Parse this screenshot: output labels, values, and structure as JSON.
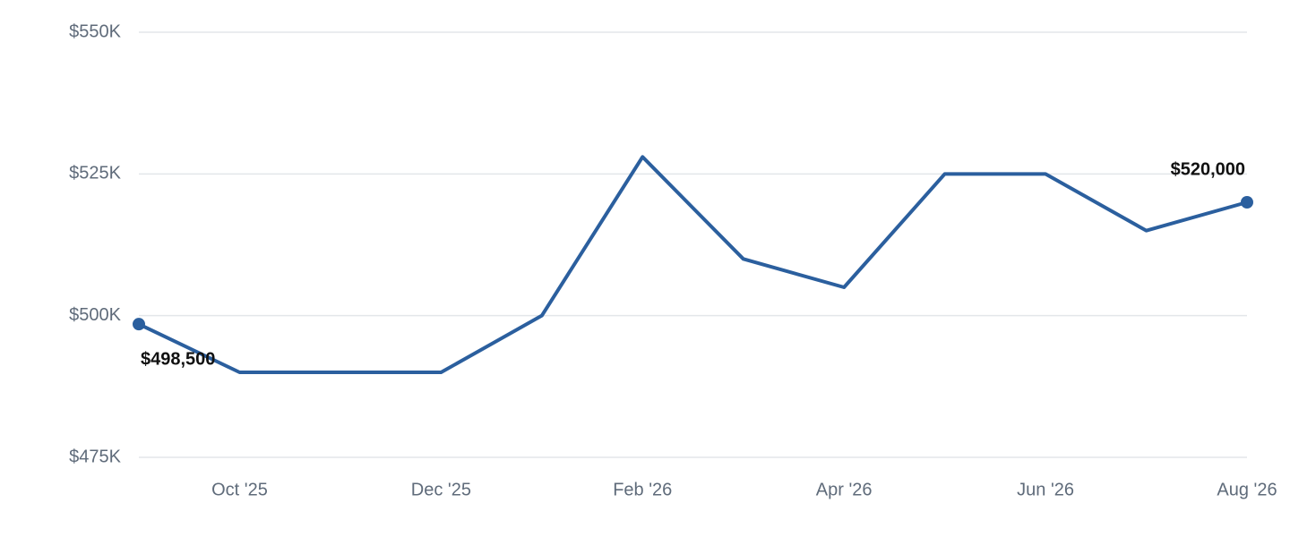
{
  "chart_data": {
    "type": "line",
    "categories": [
      null,
      "Oct '25",
      null,
      "Dec '25",
      null,
      "Feb '26",
      null,
      "Apr '26",
      null,
      "Jun '26",
      null,
      "Aug '26"
    ],
    "values": [
      498500,
      490000,
      490000,
      490000,
      500000,
      528000,
      510000,
      505000,
      525000,
      525000,
      515000,
      520000
    ],
    "value_labels": [
      "$498,500",
      null,
      null,
      null,
      null,
      null,
      null,
      null,
      null,
      null,
      null,
      "$520,000"
    ],
    "color": "#2b5f9e",
    "ylim": [
      475000,
      550000
    ],
    "yticks": [
      {
        "value": 475000,
        "label": "$475K"
      },
      {
        "value": 500000,
        "label": "$500K"
      },
      {
        "value": 525000,
        "label": "$525K"
      },
      {
        "value": 550000,
        "label": "$550K"
      }
    ],
    "grid": true
  }
}
